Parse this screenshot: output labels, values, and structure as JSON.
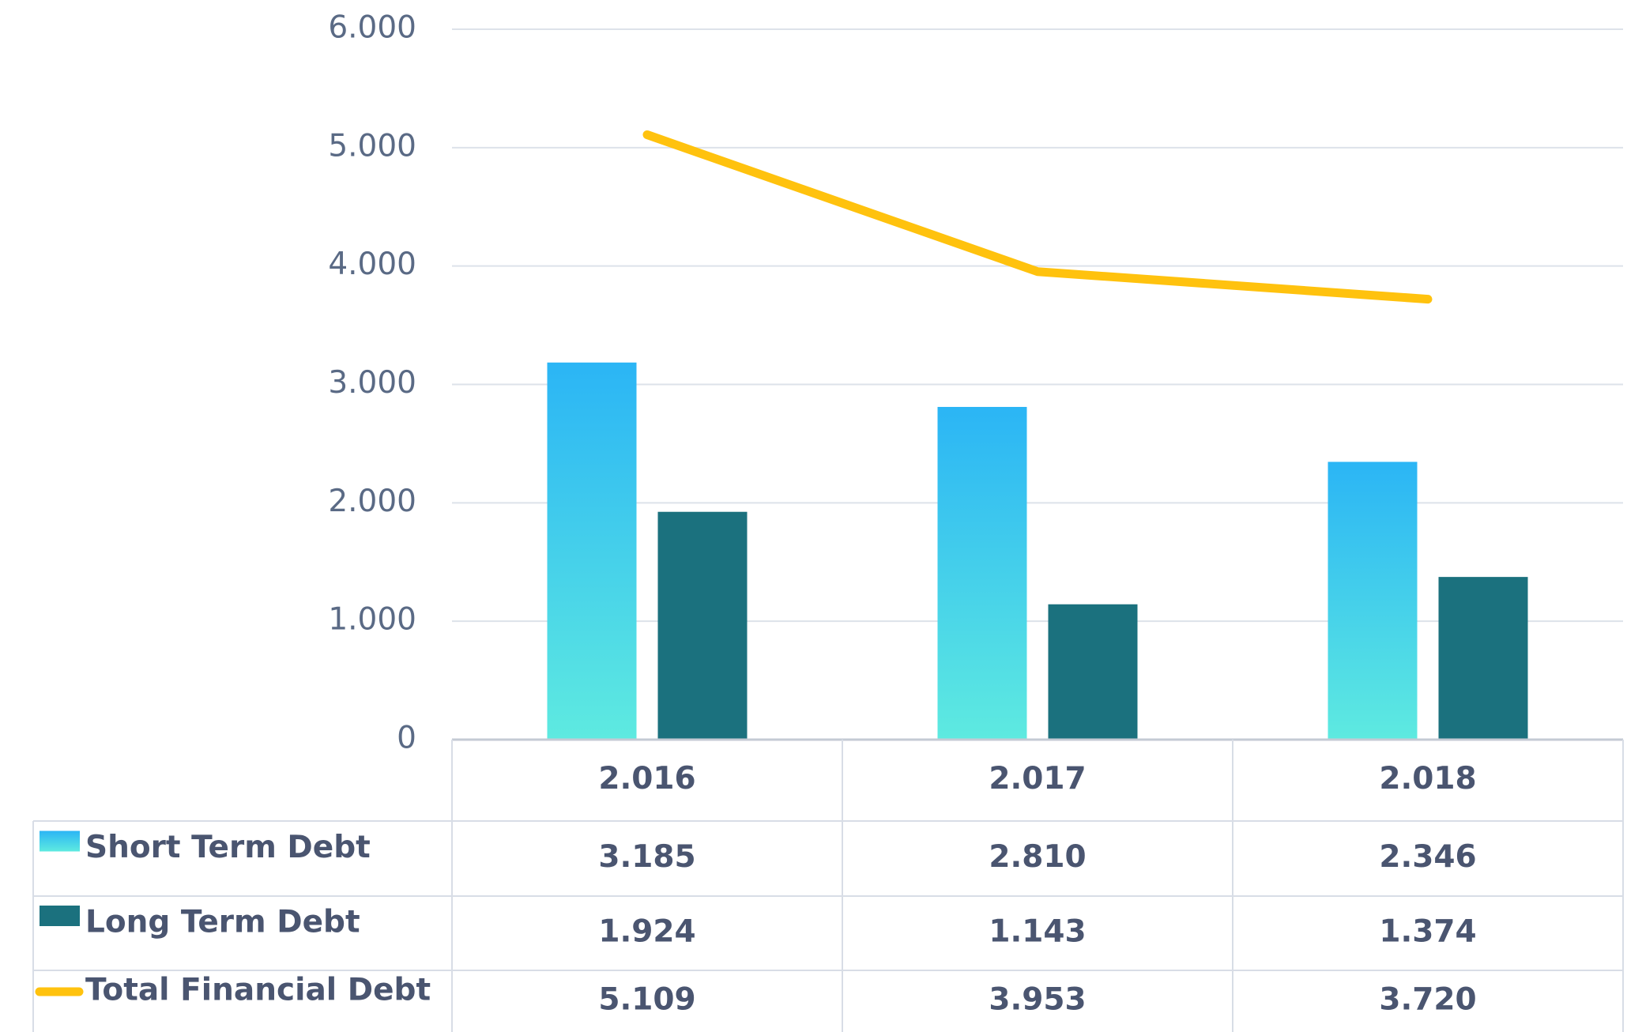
{
  "chart_data": {
    "type": "bar",
    "categories": [
      "2.016",
      "2.017",
      "2.018"
    ],
    "series": [
      {
        "name": "Short Term Debt",
        "type": "bar",
        "color": "#2bb5f5",
        "values": [
          3185,
          2810,
          2346
        ],
        "value_labels": [
          "3.185",
          "2.810",
          "2.346"
        ]
      },
      {
        "name": "Long Term Debt",
        "type": "bar",
        "color": "#1b717e",
        "values": [
          1924,
          1143,
          1374
        ],
        "value_labels": [
          "1.924",
          "1.143",
          "1.374"
        ]
      },
      {
        "name": "Total Financial Debt",
        "type": "line",
        "color": "#ffc20e",
        "values": [
          5109,
          3953,
          3720
        ],
        "value_labels": [
          "5.109",
          "3.953",
          "3.720"
        ]
      }
    ],
    "ylim": [
      0,
      6000
    ],
    "yticks": [
      0,
      {
        "value": 1000,
        "label": "1.000"
      },
      {
        "value": 2000,
        "label": "2.000"
      },
      {
        "value": 3000,
        "label": "3.000"
      },
      {
        "value": 4000,
        "label": "4.000"
      },
      {
        "value": 5000,
        "label": "5.000"
      },
      {
        "value": 6000,
        "label": "6.000"
      }
    ],
    "grid": true
  }
}
